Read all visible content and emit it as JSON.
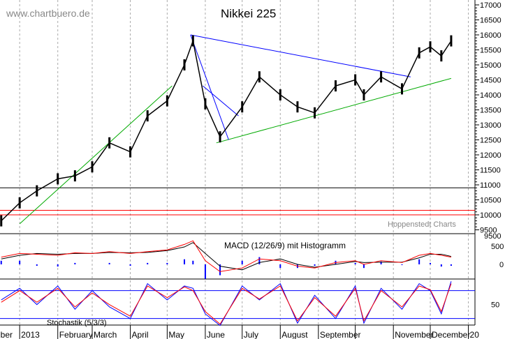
{
  "watermark": "www.chartbuero.de",
  "credit": "Hoppenstedt Charts",
  "chart_data": [
    {
      "type": "line",
      "title": "Nikkei 225",
      "grid": true,
      "ylim": [
        9500,
        17000
      ],
      "yticks": [
        17000,
        16500,
        16000,
        15500,
        15000,
        14500,
        14000,
        13500,
        13000,
        12500,
        12000,
        11500,
        11000,
        10500,
        10000,
        9500
      ],
      "x": [
        "2012-12-17",
        "2013-01-01",
        "2013-01-15",
        "2013-02-01",
        "2013-02-15",
        "2013-03-01",
        "2013-03-15",
        "2013-04-01",
        "2013-04-15",
        "2013-05-01",
        "2013-05-15",
        "2013-05-22",
        "2013-06-01",
        "2013-06-13",
        "2013-07-01",
        "2013-07-15",
        "2013-08-01",
        "2013-08-15",
        "2013-08-29",
        "2013-09-15",
        "2013-10-01",
        "2013-10-08",
        "2013-10-22",
        "2013-11-08",
        "2013-11-22",
        "2013-12-01",
        "2013-12-10",
        "2013-12-18"
      ],
      "close": [
        9800,
        10400,
        10800,
        11200,
        11300,
        11600,
        12400,
        12100,
        13300,
        13800,
        15000,
        15800,
        13700,
        12600,
        13600,
        14600,
        14000,
        13600,
        13400,
        14300,
        14500,
        14000,
        14600,
        14200,
        15400,
        15600,
        15300,
        15800
      ],
      "xtick_labels": [
        "ember",
        "2013",
        "February",
        "March",
        "April",
        "May",
        "June",
        "July",
        "August",
        "September",
        "November",
        "December",
        "20"
      ],
      "horizontal_lines": [
        {
          "value": 10900,
          "color": "#000000"
        },
        {
          "value": 10150,
          "color": "#ff0000"
        },
        {
          "value": 10000,
          "color": "#ff0000"
        }
      ],
      "trendlines": [
        {
          "from": [
            "2013-05-20",
            16000
          ],
          "to": [
            "2013-11-15",
            14600
          ],
          "color": "#0000ff"
        },
        {
          "from": [
            "2013-06-10",
            12400
          ],
          "to": [
            "2013-12-18",
            14550
          ],
          "color": "#00aa00"
        },
        {
          "from": [
            "2013-01-01",
            9700
          ],
          "to": [
            "2013-05-05",
            14300
          ],
          "color": "#00aa00"
        },
        {
          "from": [
            "2013-05-20",
            16000
          ],
          "to": [
            "2013-06-20",
            12500
          ],
          "color": "#0000ff"
        },
        {
          "from": [
            "2013-05-30",
            14300
          ],
          "to": [
            "2013-06-28",
            13300
          ],
          "color": "#0000ff"
        }
      ]
    },
    {
      "type": "line",
      "title": "MACD (12/26/9) mit Histogramm",
      "yticks": [
        500,
        0
      ],
      "macd": [
        200,
        300,
        280,
        250,
        320,
        300,
        350,
        300,
        350,
        400,
        550,
        650,
        100,
        -200,
        -100,
        150,
        100,
        -50,
        -100,
        50,
        100,
        0,
        100,
        50,
        250,
        300,
        250,
        200
      ],
      "signal": [
        150,
        250,
        300,
        280,
        300,
        300,
        330,
        320,
        330,
        380,
        480,
        600,
        300,
        -50,
        -150,
        50,
        150,
        0,
        -80,
        0,
        80,
        50,
        60,
        60,
        180,
        280,
        280,
        220
      ]
    },
    {
      "type": "line",
      "title": "Stochastik (5/3/3)",
      "yticks": [
        50
      ],
      "levels": [
        80,
        20
      ],
      "k": [
        60,
        85,
        50,
        90,
        40,
        80,
        45,
        20,
        95,
        60,
        90,
        85,
        30,
        5,
        90,
        60,
        95,
        10,
        70,
        20,
        90,
        10,
        85,
        40,
        95,
        80,
        30,
        100
      ],
      "d": [
        55,
        80,
        55,
        85,
        45,
        75,
        50,
        25,
        90,
        65,
        88,
        80,
        35,
        8,
        85,
        62,
        90,
        15,
        65,
        25,
        85,
        15,
        80,
        45,
        90,
        82,
        35,
        95
      ]
    }
  ]
}
